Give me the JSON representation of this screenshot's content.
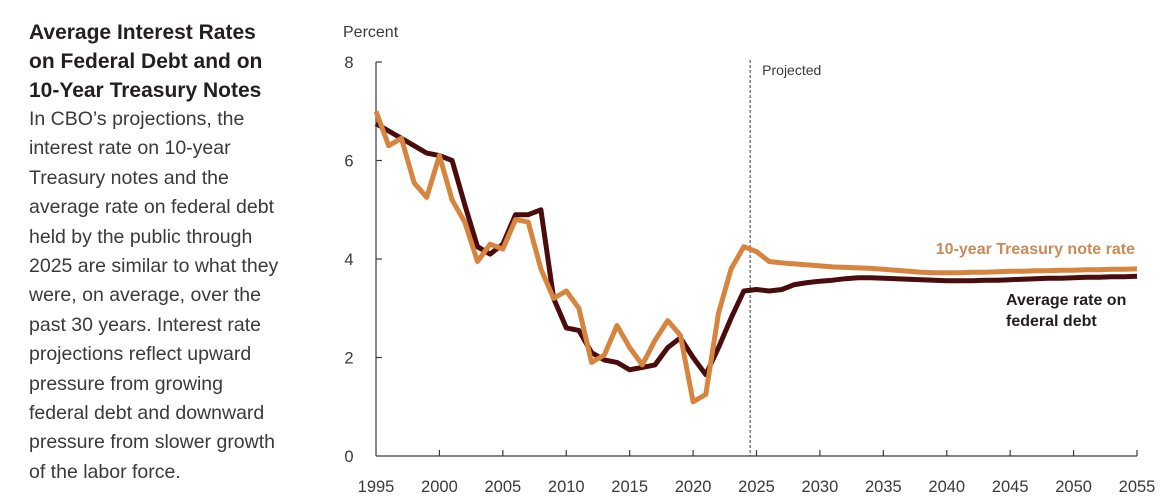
{
  "sidebar": {
    "title": "Average Interest Rates on Federal Debt and on 10-Year Treasury Notes",
    "title_lines": [
      "Average Interest Rates",
      "on Federal Debt and on",
      "10-Year Treasury Notes"
    ],
    "description_lines": [
      "In CBO’s projections, the",
      "interest rate on 10-year",
      "Treasury notes and the",
      "average rate on federal debt",
      "held by the public through",
      "2025 are similar to what they",
      "were, on average, over the",
      "past 30 years. Interest rate",
      "projections reflect upward",
      "pressure from growing",
      "federal debt and downward",
      "pressure from slower growth",
      "of the labor force."
    ]
  },
  "chart_data": {
    "type": "line",
    "title": "Average Interest Rates on Federal Debt and on 10-Year Treasury Notes",
    "ylabel": "Percent",
    "xlabel": "",
    "xlim": [
      1995,
      2055
    ],
    "ylim": [
      0,
      8
    ],
    "x_ticks": [
      1995,
      2000,
      2005,
      2010,
      2015,
      2020,
      2025,
      2030,
      2035,
      2040,
      2045,
      2050,
      2055
    ],
    "y_ticks": [
      0,
      2,
      4,
      6,
      8
    ],
    "grid": false,
    "annotations": [
      {
        "text": "Projected",
        "x": 2024.5,
        "style": "dashed-vertical-line"
      }
    ],
    "series": [
      {
        "name": "10-year Treasury note rate",
        "color": "#d6843e",
        "label_color": "#c98b58",
        "x": [
          1995,
          1996,
          1997,
          1998,
          1999,
          2000,
          2001,
          2002,
          2003,
          2004,
          2005,
          2006,
          2007,
          2008,
          2009,
          2010,
          2011,
          2012,
          2013,
          2014,
          2015,
          2016,
          2017,
          2018,
          2019,
          2020,
          2021,
          2022,
          2023,
          2024,
          2025,
          2026,
          2027,
          2028,
          2029,
          2030,
          2031,
          2032,
          2033,
          2034,
          2035,
          2036,
          2037,
          2038,
          2039,
          2040,
          2041,
          2042,
          2043,
          2044,
          2045,
          2046,
          2047,
          2048,
          2049,
          2050,
          2051,
          2052,
          2053,
          2054,
          2055
        ],
        "values": [
          7.0,
          6.3,
          6.45,
          5.55,
          5.25,
          6.1,
          5.2,
          4.75,
          3.95,
          4.3,
          4.2,
          4.8,
          4.75,
          3.8,
          3.2,
          3.35,
          3.0,
          1.9,
          2.05,
          2.65,
          2.2,
          1.85,
          2.35,
          2.75,
          2.45,
          1.1,
          1.25,
          2.9,
          3.8,
          4.25,
          4.15,
          3.95,
          3.92,
          3.9,
          3.88,
          3.86,
          3.84,
          3.83,
          3.82,
          3.81,
          3.79,
          3.77,
          3.75,
          3.73,
          3.72,
          3.72,
          3.72,
          3.73,
          3.73,
          3.74,
          3.75,
          3.75,
          3.76,
          3.76,
          3.77,
          3.77,
          3.78,
          3.78,
          3.79,
          3.79,
          3.8
        ]
      },
      {
        "name": "Average rate on federal debt",
        "color": "#4a0c0c",
        "label_color": "#231f20",
        "x": [
          1995,
          1996,
          1997,
          1998,
          1999,
          2000,
          2001,
          2002,
          2003,
          2004,
          2005,
          2006,
          2007,
          2008,
          2009,
          2010,
          2011,
          2012,
          2013,
          2014,
          2015,
          2016,
          2017,
          2018,
          2019,
          2020,
          2021,
          2022,
          2023,
          2024,
          2025,
          2026,
          2027,
          2028,
          2029,
          2030,
          2031,
          2032,
          2033,
          2034,
          2035,
          2036,
          2037,
          2038,
          2039,
          2040,
          2041,
          2042,
          2043,
          2044,
          2045,
          2046,
          2047,
          2048,
          2049,
          2050,
          2051,
          2052,
          2053,
          2054,
          2055
        ],
        "values": [
          6.75,
          6.6,
          6.45,
          6.3,
          6.15,
          6.1,
          6.0,
          5.1,
          4.25,
          4.1,
          4.3,
          4.9,
          4.9,
          5.0,
          3.2,
          2.6,
          2.55,
          2.1,
          1.95,
          1.9,
          1.75,
          1.8,
          1.85,
          2.2,
          2.4,
          2.0,
          1.65,
          2.2,
          2.8,
          3.35,
          3.38,
          3.35,
          3.38,
          3.48,
          3.52,
          3.55,
          3.57,
          3.6,
          3.62,
          3.62,
          3.61,
          3.6,
          3.59,
          3.58,
          3.57,
          3.56,
          3.56,
          3.56,
          3.57,
          3.57,
          3.58,
          3.59,
          3.6,
          3.61,
          3.61,
          3.62,
          3.63,
          3.63,
          3.64,
          3.64,
          3.65
        ]
      }
    ]
  }
}
